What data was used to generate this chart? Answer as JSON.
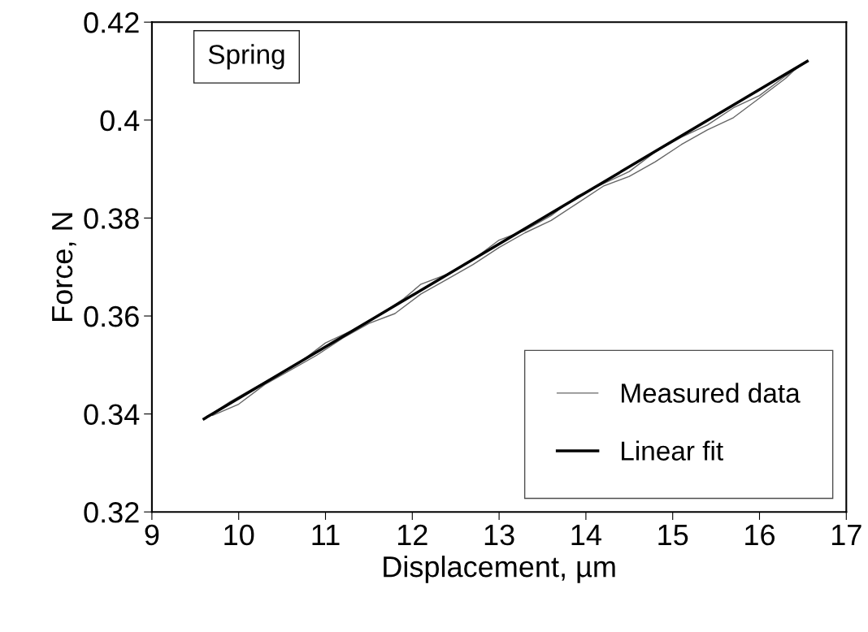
{
  "chart_data": {
    "type": "line",
    "xlabel": "Displacement, µm",
    "ylabel": "Force, N",
    "xlim": [
      9,
      17
    ],
    "xticks": [
      9,
      10,
      11,
      12,
      13,
      14,
      15,
      16,
      17
    ],
    "ylim": [
      0.32,
      0.42
    ],
    "yticks": [
      {
        "value": 0.32,
        "label": "0.32"
      },
      {
        "value": 0.34,
        "label": "0.34"
      },
      {
        "value": 0.36,
        "label": "0.36"
      },
      {
        "value": 0.38,
        "label": "0.38"
      },
      {
        "value": 0.4,
        "label": "0.4"
      },
      {
        "value": 0.42,
        "label": "0.42"
      }
    ],
    "annotations": [
      "Spring"
    ],
    "legend": "bottom right",
    "grid": false,
    "marker": "none",
    "line_style": "solid",
    "series": [
      {
        "name": "Measured data",
        "color": "#666666",
        "x": [
          9.6,
          9.9,
          10.1,
          10.4,
          10.7,
          11.0,
          11.3,
          11.6,
          11.9,
          12.1,
          12.4,
          12.7,
          13.0,
          13.3,
          13.6,
          13.9,
          14.2,
          14.5,
          14.8,
          15.1,
          15.4,
          15.7,
          16.0,
          16.3,
          16.55
        ],
        "values": [
          0.339,
          0.3425,
          0.3445,
          0.3475,
          0.3505,
          0.3545,
          0.357,
          0.36,
          0.3635,
          0.3665,
          0.3685,
          0.3715,
          0.3755,
          0.3775,
          0.3805,
          0.3845,
          0.387,
          0.3895,
          0.3935,
          0.3965,
          0.399,
          0.4025,
          0.405,
          0.409,
          0.412
        ]
      },
      {
        "color": "#666666",
        "x": [
          16.45,
          16.3,
          16.0,
          15.7,
          15.4,
          15.1,
          14.8,
          14.5,
          14.2,
          13.9,
          13.6,
          13.3,
          13.0,
          12.7,
          12.4,
          12.1,
          11.8,
          11.5,
          11.2,
          10.9,
          10.6,
          10.3,
          10.0,
          9.7
        ],
        "values": [
          0.411,
          0.4085,
          0.4045,
          0.4005,
          0.398,
          0.395,
          0.3915,
          0.3885,
          0.3865,
          0.383,
          0.3795,
          0.377,
          0.374,
          0.3705,
          0.3675,
          0.3645,
          0.3605,
          0.3585,
          0.3555,
          0.352,
          0.349,
          0.346,
          0.342,
          0.3397
        ]
      },
      {
        "name": "Linear fit",
        "color": "#000000",
        "x": [
          9.6,
          16.55
        ],
        "values": [
          0.339,
          0.412
        ]
      }
    ]
  }
}
